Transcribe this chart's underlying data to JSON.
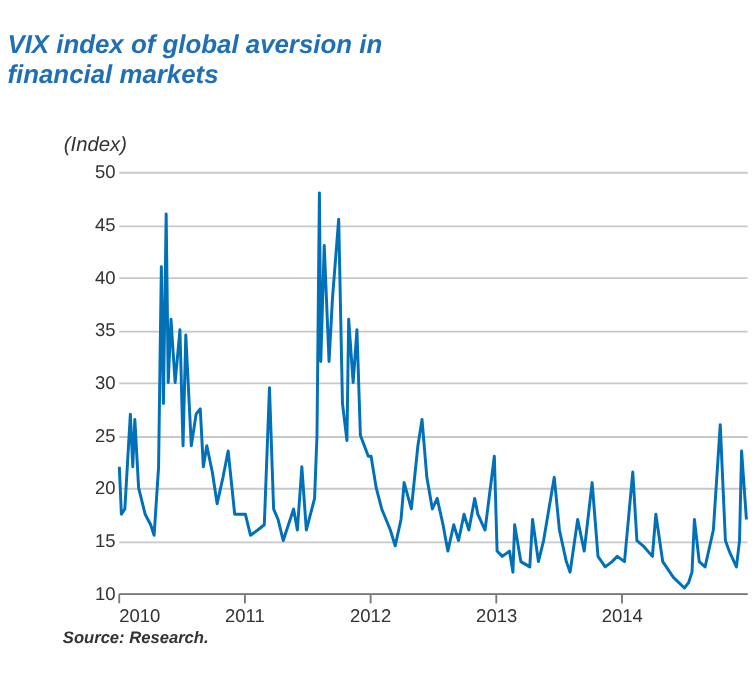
{
  "chart_data": {
    "type": "line",
    "title": "VIX index of global aversion in financial markets",
    "ylabel": "(Index)",
    "annotations": [
      "Source: Research."
    ],
    "x": [
      "2010-01-04",
      "2010-01-10",
      "2010-01-20",
      "2010-02-05",
      "2010-02-12",
      "2010-02-18",
      "2010-03-01",
      "2010-03-20",
      "2010-04-05",
      "2010-04-15",
      "2010-04-28",
      "2010-05-06",
      "2010-05-12",
      "2010-05-20",
      "2010-05-26",
      "2010-06-03",
      "2010-06-15",
      "2010-06-29",
      "2010-07-08",
      "2010-07-16",
      "2010-08-01",
      "2010-08-15",
      "2010-08-27",
      "2010-09-05",
      "2010-09-15",
      "2010-10-01",
      "2010-10-15",
      "2010-11-01",
      "2010-11-16",
      "2010-12-05",
      "2011-01-05",
      "2011-01-20",
      "2011-02-10",
      "2011-03-01",
      "2011-03-16",
      "2011-03-28",
      "2011-04-10",
      "2011-04-25",
      "2011-05-05",
      "2011-05-25",
      "2011-06-05",
      "2011-06-18",
      "2011-07-01",
      "2011-07-25",
      "2011-08-01",
      "2011-08-08",
      "2011-08-12",
      "2011-08-22",
      "2011-09-05",
      "2011-09-15",
      "2011-10-03",
      "2011-10-14",
      "2011-10-27",
      "2011-11-01",
      "2011-11-14",
      "2011-11-25",
      "2011-12-05",
      "2011-12-28",
      "2012-01-05",
      "2012-01-20",
      "2012-02-05",
      "2012-03-01",
      "2012-03-15",
      "2012-04-01",
      "2012-04-10",
      "2012-05-01",
      "2012-05-20",
      "2012-06-01",
      "2012-06-15",
      "2012-07-01",
      "2012-07-15",
      "2012-08-01",
      "2012-08-15",
      "2012-09-01",
      "2012-09-15",
      "2012-10-01",
      "2012-10-15",
      "2012-11-01",
      "2012-11-10",
      "2012-12-01",
      "2012-12-28",
      "2013-01-05",
      "2013-01-20",
      "2013-02-10",
      "2013-02-20",
      "2013-02-25",
      "2013-03-15",
      "2013-04-10",
      "2013-04-18",
      "2013-05-05",
      "2013-05-20",
      "2013-06-20",
      "2013-07-05",
      "2013-07-25",
      "2013-08-05",
      "2013-08-27",
      "2013-09-15",
      "2013-10-08",
      "2013-10-25",
      "2013-11-15",
      "2013-12-05",
      "2013-12-20",
      "2014-01-10",
      "2014-02-03",
      "2014-02-15",
      "2014-03-05",
      "2014-04-01",
      "2014-04-11",
      "2014-05-01",
      "2014-06-01",
      "2014-07-03",
      "2014-07-15",
      "2014-07-25",
      "2014-08-01",
      "2014-08-15",
      "2014-09-01",
      "2014-09-25",
      "2014-10-15",
      "2014-10-30",
      "2014-11-10",
      "2014-12-01",
      "2014-12-10",
      "2014-12-16",
      "2014-12-30"
    ],
    "series": [
      {
        "color": "#0070b8",
        "values": [
          22,
          17.5,
          18,
          27,
          22,
          26.5,
          20,
          17.5,
          16.5,
          15.5,
          22,
          41,
          28,
          46,
          30,
          36,
          30,
          35,
          24,
          34.5,
          24,
          27,
          27.5,
          22,
          24,
          21.5,
          18.5,
          21,
          23.5,
          17.5,
          17.5,
          15.5,
          16,
          16.5,
          29.5,
          18,
          17,
          15,
          16,
          18,
          16,
          22,
          16,
          19,
          25,
          48,
          32,
          43,
          32,
          38,
          45.5,
          28,
          24.5,
          36,
          30,
          35,
          25,
          23,
          23,
          20,
          18,
          16,
          14.5,
          17,
          20.5,
          18,
          24,
          26.5,
          21,
          18,
          19,
          16.5,
          14,
          16.5,
          15,
          17.5,
          16,
          19,
          17.5,
          16,
          23,
          14,
          13.5,
          14,
          12,
          16.5,
          13,
          12.5,
          17,
          13,
          15,
          21,
          16,
          13,
          12,
          17,
          14,
          20.5,
          13.5,
          12.5,
          13,
          13.5,
          13,
          21.5,
          15,
          14.5,
          13.5,
          17.5,
          13,
          11.5,
          10.5,
          11,
          12,
          17,
          13,
          12.5,
          16,
          26,
          15,
          14,
          12.5,
          15,
          23.5,
          17
        ]
      }
    ],
    "xlim": [
      "2010-01-01",
      "2014-12-31"
    ],
    "xticks": [
      "2010",
      "2011",
      "2012",
      "2013",
      "2014"
    ],
    "ylim": [
      10,
      50
    ],
    "yticks": [
      10,
      15,
      20,
      25,
      30,
      35,
      40,
      45,
      50
    ],
    "grid": "y",
    "legend": false,
    "line_style": "solid"
  }
}
